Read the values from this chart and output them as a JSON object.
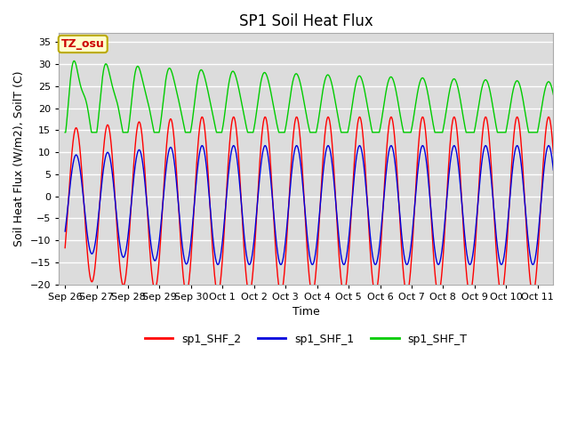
{
  "title": "SP1 Soil Heat Flux",
  "xlabel": "Time",
  "ylabel": "Soil Heat Flux (W/m2), SoilT (C)",
  "ylim": [
    -20,
    37
  ],
  "yticks": [
    -20,
    -15,
    -10,
    -5,
    0,
    5,
    10,
    15,
    20,
    25,
    30,
    35
  ],
  "xtick_labels": [
    "Sep 26",
    "Sep 27",
    "Sep 28",
    "Sep 29",
    "Sep 30",
    "Oct 1",
    "Oct 2",
    "Oct 3",
    "Oct 4",
    "Oct 5",
    "Oct 6",
    "Oct 7",
    "Oct 8",
    "Oct 9",
    "Oct 10",
    "Oct 11"
  ],
  "xtick_positions": [
    0,
    1,
    2,
    3,
    4,
    5,
    6,
    7,
    8,
    9,
    10,
    11,
    12,
    13,
    14,
    15
  ],
  "colors": {
    "SHF2": "#ff0000",
    "SHF1": "#0000dd",
    "SHFT": "#00cc00"
  },
  "legend_labels": [
    "sp1_SHF_2",
    "sp1_SHF_1",
    "sp1_SHF_T"
  ],
  "annotation_text": "TZ_osu",
  "annotation_bg": "#ffffcc",
  "annotation_border": "#bbaa00",
  "plot_bg": "#dcdcdc",
  "fig_bg": "#ffffff",
  "grid_color": "#ffffff",
  "title_fontsize": 12,
  "axis_label_fontsize": 9,
  "tick_fontsize": 8,
  "legend_fontsize": 9
}
